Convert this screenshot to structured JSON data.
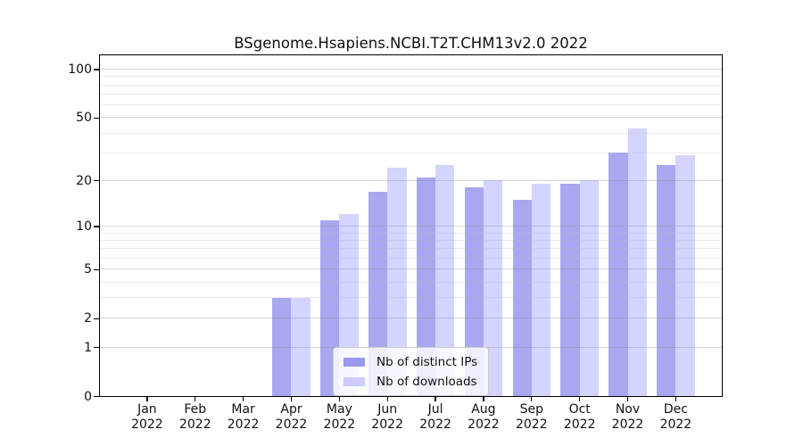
{
  "chart_data": {
    "type": "bar",
    "title": "BSgenome.Hsapiens.NCBI.T2T.CHM13v2.0 2022",
    "categories": [
      "Jan 2022",
      "Feb 2022",
      "Mar 2022",
      "Apr 2022",
      "May 2022",
      "Jun 2022",
      "Jul 2022",
      "Aug 2022",
      "Sep 2022",
      "Oct 2022",
      "Nov 2022",
      "Dec 2022"
    ],
    "series": [
      {
        "name": "Nb of distinct IPs",
        "color": "#9999ee",
        "values": [
          0,
          0,
          0,
          3,
          11,
          17,
          21,
          18,
          15,
          19,
          30,
          25
        ]
      },
      {
        "name": "Nb of downloads",
        "color": "#ccccff",
        "values": [
          0,
          0,
          0,
          3,
          12,
          24,
          25,
          20,
          19,
          20,
          43,
          29
        ]
      }
    ],
    "yscale": "log1p",
    "ylim": [
      0,
      123
    ],
    "y_ticks": [
      0,
      1,
      2,
      5,
      10,
      20,
      50,
      100
    ],
    "y_minor_gridlines": [
      3,
      4,
      6,
      7,
      8,
      9,
      30,
      40,
      60,
      70,
      80,
      90
    ],
    "grid": true,
    "legend_position": "bottom-center",
    "xlabel": "",
    "ylabel": ""
  },
  "legend": {
    "items": [
      {
        "label": "Nb of distinct IPs"
      },
      {
        "label": "Nb of downloads"
      }
    ]
  }
}
